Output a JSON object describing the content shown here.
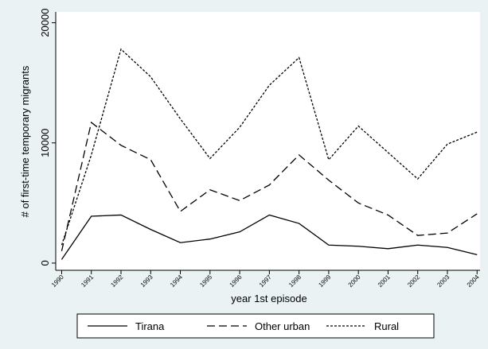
{
  "chart_data": {
    "type": "line",
    "x_label": "year 1st episode",
    "y_label": "# of first-time temporary migrants",
    "x": [
      1990,
      1991,
      1992,
      1993,
      1994,
      1995,
      1996,
      1997,
      1998,
      1999,
      2000,
      2001,
      2002,
      2003,
      2004
    ],
    "series": [
      {
        "name": "Tirana",
        "color": "#000000",
        "style": "solid",
        "values": [
          300,
          3900,
          4000,
          2800,
          1700,
          2000,
          2600,
          4000,
          3300,
          1500,
          1400,
          1200,
          1500,
          1300,
          700
        ]
      },
      {
        "name": "Other urban",
        "color": "#000000",
        "style": "dashed",
        "values": [
          1000,
          11700,
          9800,
          8600,
          4300,
          6100,
          5200,
          6500,
          9000,
          6900,
          5000,
          4000,
          2300,
          2500,
          4100
        ]
      },
      {
        "name": "Rural",
        "color": "#000000",
        "style": "dotted",
        "values": [
          1500,
          9000,
          17800,
          15500,
          12000,
          8700,
          11300,
          14800,
          17100,
          8600,
          11400,
          9200,
          7000,
          9900,
          10900
        ]
      }
    ],
    "xlim": [
      1989.8,
      2004.1
    ],
    "xticks": [
      1990,
      1991,
      1992,
      1993,
      1994,
      1995,
      1996,
      1997,
      1998,
      1999,
      2000,
      2001,
      2002,
      2003,
      2004
    ],
    "ylim": [
      -600,
      20900
    ],
    "yticks": [
      0,
      10000,
      20000
    ],
    "legend": "bottom"
  }
}
